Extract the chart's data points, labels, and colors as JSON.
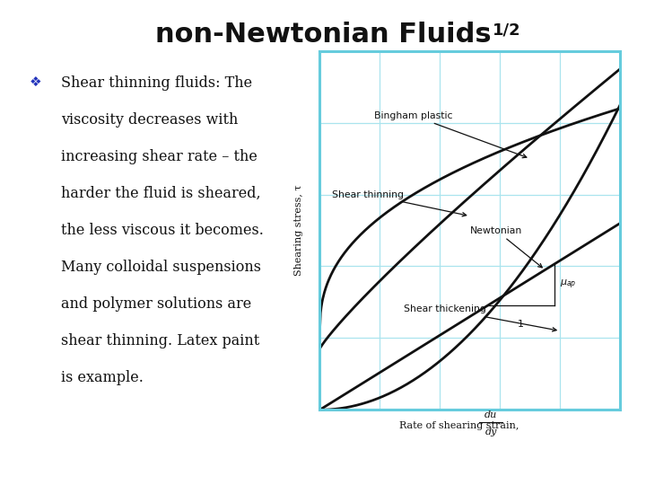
{
  "title": "non-Newtonian Fluids",
  "title_superscript": "1/2",
  "bg_color": "#ffffff",
  "bullet_color": "#2233bb",
  "bullet_text_lines": [
    "Shear thinning fluids: The",
    "viscosity decreases with",
    "increasing shear rate – the",
    "harder the fluid is sheared,",
    "the less viscous it becomes.",
    "Many colloidal suspensions",
    "and polymer solutions are",
    "shear thinning. Latex paint",
    "is example."
  ],
  "graph_box_color": "#66ccdd",
  "graph_grid_color": "#aae4ee",
  "curve_color": "#111111",
  "ylabel": "Shearing stress, τ",
  "xlabel_main": "Rate of shearing strain,",
  "xlabel_frac_top": "du",
  "xlabel_frac_bot": "dy",
  "label_bingham": "Bingham plastic",
  "label_shear_thinning": "Shear thinning",
  "label_newtonian": "Newtonian",
  "label_shear_thickening": "Shear thickening"
}
